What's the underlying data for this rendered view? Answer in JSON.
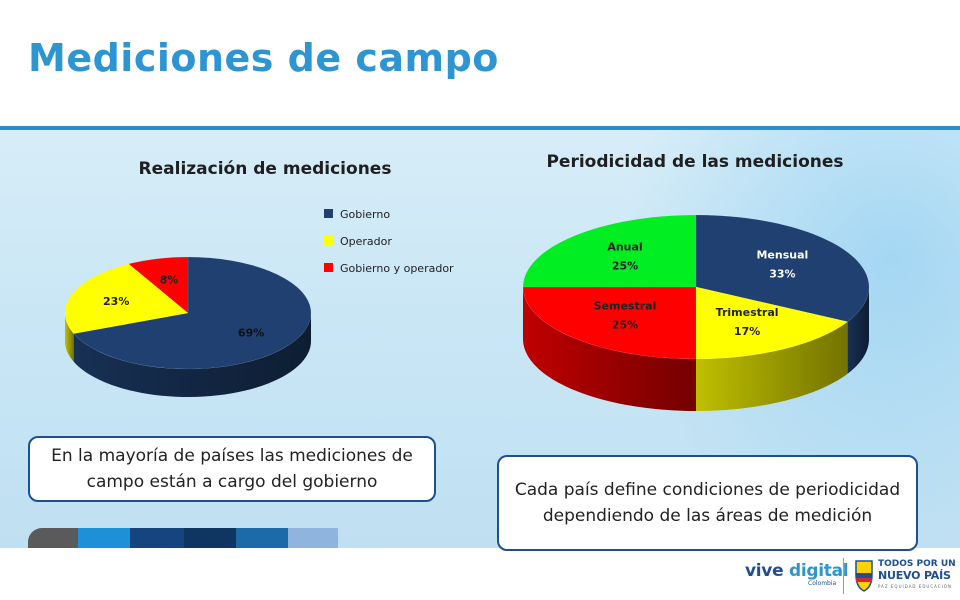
{
  "slide": {
    "title": "Mediciones de campo",
    "callout_left": "En la mayoría de países las mediciones de campo están a cargo del gobierno",
    "callout_right": "Cada país define condiciones de periodicidad dependiendo de las áreas de medición"
  },
  "colors": {
    "title": "#2e95d3",
    "band_border": "#2a8fcc",
    "gobierno": "#1f4070",
    "operador": "#ffff00",
    "gobierno_y_operador": "#ff0000",
    "anual": "#00ee22",
    "mensual": "#1f4070",
    "trimestral": "#ffff00",
    "semestral": "#ff0000",
    "stripes": [
      "#5a5a5a",
      "#1e90d8",
      "#16447e",
      "#0f3561",
      "#1c6aa8",
      "#8fb4de"
    ]
  },
  "chart_data": [
    {
      "type": "pie",
      "title": "Realización de mediciones",
      "legend_position": "right",
      "slices": [
        {
          "label": "Gobierno",
          "value": 69,
          "value_label": "69%",
          "color": "#1f4070"
        },
        {
          "label": "Operador",
          "value": 23,
          "value_label": "23%",
          "color": "#ffff00"
        },
        {
          "label": "Gobierno y operador",
          "value": 8,
          "value_label": "8%",
          "color": "#ff0000"
        }
      ]
    },
    {
      "type": "pie",
      "title": "Periodicidad de las mediciones",
      "legend_position": "none",
      "slices": [
        {
          "label": "Mensual",
          "value": 33,
          "value_label": "33%",
          "color": "#1f4070"
        },
        {
          "label": "Trimestral",
          "value": 17,
          "value_label": "17%",
          "color": "#ffff00"
        },
        {
          "label": "Semestral",
          "value": 25,
          "value_label": "25%",
          "color": "#ff0000"
        },
        {
          "label": "Anual",
          "value": 25,
          "value_label": "25%",
          "color": "#00ee22"
        }
      ]
    }
  ],
  "footer": {
    "logo_vive": "vive",
    "logo_digital": "digital",
    "logo_colombia": "Colombia",
    "logo_todos_line1": "TODOS POR UN",
    "logo_todos_line2": "NUEVO PAÍS",
    "logo_todos_line3": "PAZ EQUIDAD EDUCACIÓN"
  }
}
